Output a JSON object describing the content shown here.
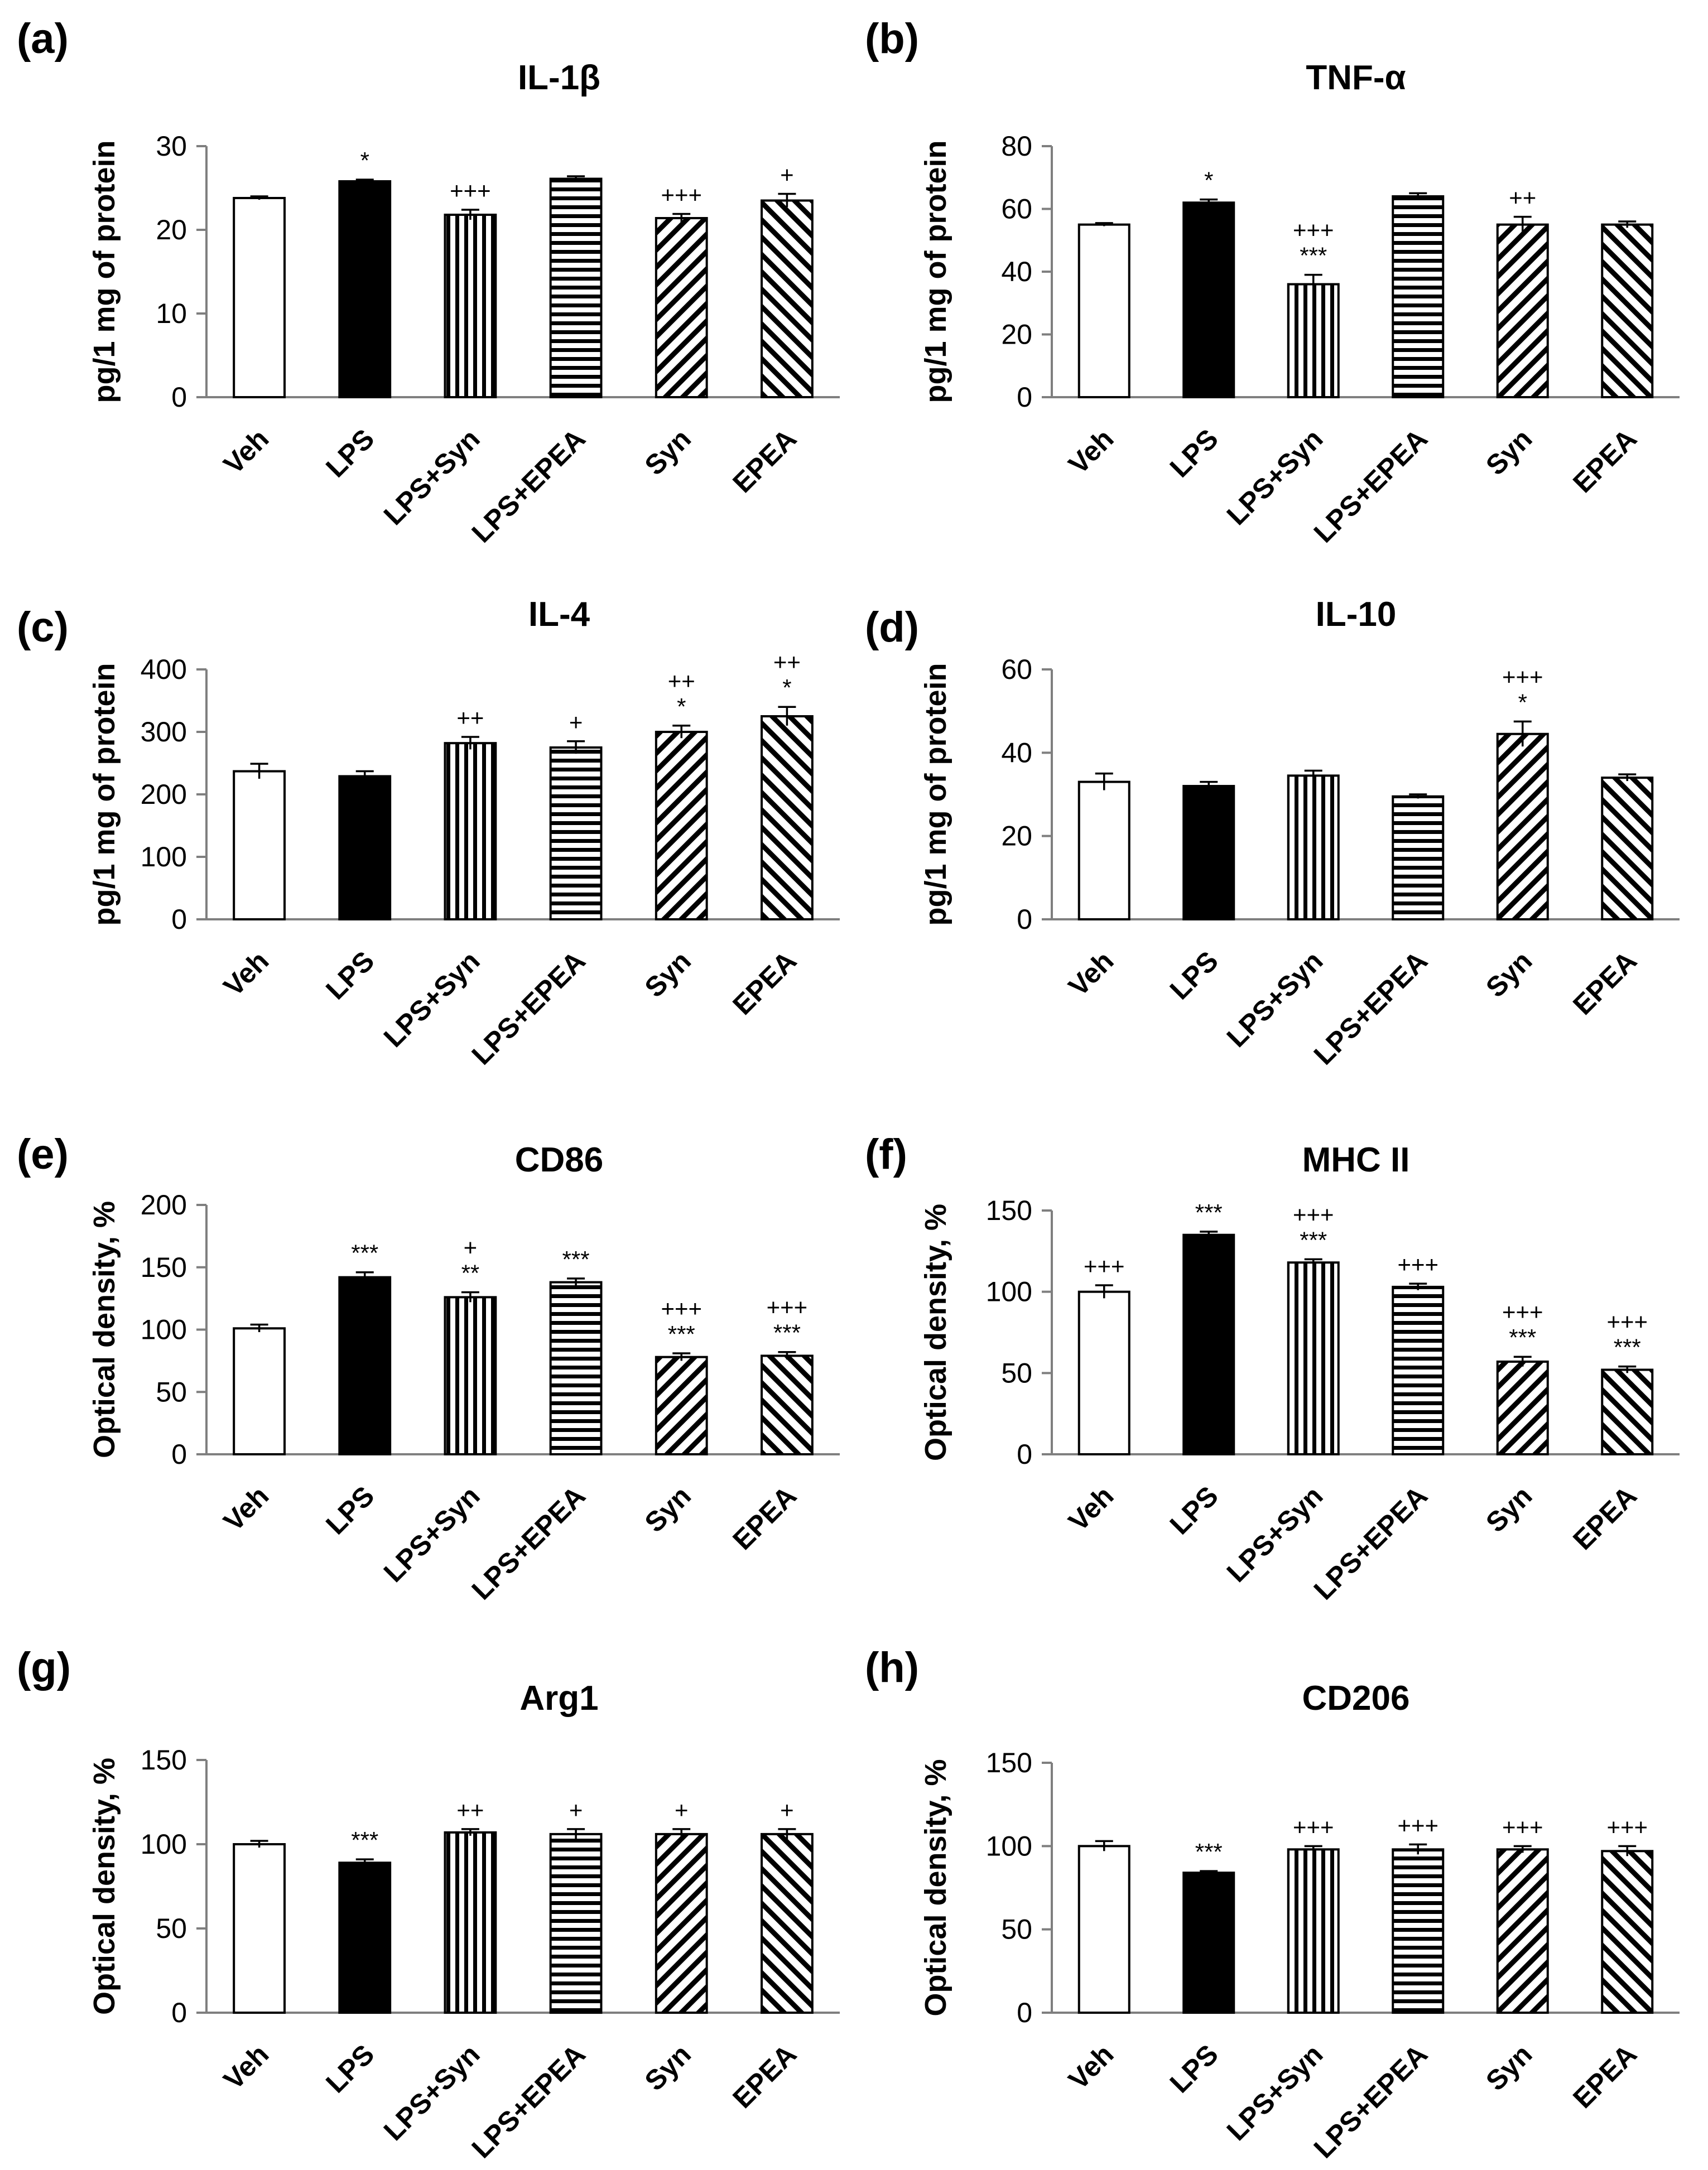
{
  "categories": [
    "Veh",
    "LPS",
    "LPS+Syn",
    "LPS+EPEA",
    "Syn",
    "EPEA"
  ],
  "colors": {
    "axis": "#7f7f7f",
    "bar_stroke": "#000000",
    "bar_fill": "#ffffff",
    "bar_solid": "#000000"
  },
  "chart_data": [
    {
      "panel": "(a)",
      "title": "IL-1β",
      "type": "bar",
      "ylabel": "pg/1 mg of protein",
      "ylim": [
        0,
        30
      ],
      "yticks": [
        0,
        10,
        20,
        30
      ],
      "categories": [
        "Veh",
        "LPS",
        "LPS+Syn",
        "LPS+EPEA",
        "Syn",
        "EPEA"
      ],
      "values": [
        23.8,
        25.8,
        21.8,
        26.1,
        21.4,
        23.5
      ],
      "errors": [
        0.2,
        0.2,
        0.6,
        0.3,
        0.5,
        0.8
      ],
      "significance": [
        [],
        [
          "*"
        ],
        [
          "+++"
        ],
        [],
        [
          "+++"
        ],
        [
          "+"
        ]
      ]
    },
    {
      "panel": "(b)",
      "title": "TNF-α",
      "type": "bar",
      "ylabel": "pg/1 mg of protein",
      "ylim": [
        0,
        80
      ],
      "yticks": [
        0,
        20,
        40,
        60,
        80
      ],
      "categories": [
        "Veh",
        "LPS",
        "LPS+Syn",
        "LPS+EPEA",
        "Syn",
        "EPEA"
      ],
      "values": [
        55,
        62,
        36,
        64,
        55,
        55
      ],
      "errors": [
        0.5,
        1,
        3,
        1,
        2.5,
        1
      ],
      "significance": [
        [],
        [
          "*"
        ],
        [
          "+++",
          "***"
        ],
        [],
        [
          "++"
        ],
        []
      ]
    },
    {
      "panel": "(c)",
      "title": "IL-4",
      "type": "bar",
      "ylabel": "pg/1 mg of protein",
      "ylim": [
        0,
        400
      ],
      "yticks": [
        0,
        100,
        200,
        300,
        400
      ],
      "categories": [
        "Veh",
        "LPS",
        "LPS+Syn",
        "LPS+EPEA",
        "Syn",
        "EPEA"
      ],
      "values": [
        237,
        229,
        282,
        275,
        300,
        325
      ],
      "errors": [
        12,
        8,
        10,
        10,
        10,
        15
      ],
      "significance": [
        [],
        [],
        [
          "++"
        ],
        [
          "+"
        ],
        [
          "++",
          "*"
        ],
        [
          "++",
          "*"
        ]
      ]
    },
    {
      "panel": "(d)",
      "title": "IL-10",
      "type": "bar",
      "ylabel": "pg/1 mg of protein",
      "ylim": [
        0,
        60
      ],
      "yticks": [
        0,
        20,
        40,
        60
      ],
      "categories": [
        "Veh",
        "LPS",
        "LPS+Syn",
        "LPS+EPEA",
        "Syn",
        "EPEA"
      ],
      "values": [
        33,
        32,
        34.5,
        29.5,
        44.5,
        34
      ],
      "errors": [
        2,
        1,
        1.2,
        0.5,
        3,
        0.8
      ],
      "significance": [
        [],
        [],
        [],
        [],
        [
          "+++",
          "*"
        ],
        []
      ]
    },
    {
      "panel": "(e)",
      "title": "CD86",
      "type": "bar",
      "ylabel": "Optical density, %",
      "ylim": [
        0,
        200
      ],
      "yticks": [
        0,
        50,
        100,
        150,
        200
      ],
      "categories": [
        "Veh",
        "LPS",
        "LPS+Syn",
        "LPS+EPEA",
        "Syn",
        "EPEA"
      ],
      "values": [
        101,
        142,
        126,
        138,
        78,
        79
      ],
      "errors": [
        3,
        4,
        4,
        3,
        3,
        3
      ],
      "significance": [
        [],
        [
          "***"
        ],
        [
          "+",
          "**"
        ],
        [
          "***"
        ],
        [
          "+++",
          "***"
        ],
        [
          "+++",
          "***"
        ]
      ]
    },
    {
      "panel": "(f)",
      "title": "MHC II",
      "type": "bar",
      "ylabel": "Optical density, %",
      "ylim": [
        0,
        150
      ],
      "yticks": [
        0,
        50,
        100,
        150
      ],
      "categories": [
        "Veh",
        "LPS",
        "LPS+Syn",
        "LPS+EPEA",
        "Syn",
        "EPEA"
      ],
      "values": [
        100,
        135,
        118,
        103,
        57,
        52
      ],
      "errors": [
        4,
        2,
        2,
        2,
        3,
        2
      ],
      "significance": [
        [
          "+++"
        ],
        [
          "***"
        ],
        [
          "+++",
          "***"
        ],
        [
          "+++"
        ],
        [
          "+++",
          "***"
        ],
        [
          "+++",
          "***"
        ]
      ]
    },
    {
      "panel": "(g)",
      "title": "Arg1",
      "type": "bar",
      "ylabel": "Optical density, %",
      "ylim": [
        0,
        150
      ],
      "yticks": [
        0,
        50,
        100,
        150
      ],
      "categories": [
        "Veh",
        "LPS",
        "LPS+Syn",
        "LPS+EPEA",
        "Syn",
        "EPEA"
      ],
      "values": [
        100,
        89,
        107,
        106,
        106,
        106
      ],
      "errors": [
        2,
        2,
        2,
        3,
        3,
        3
      ],
      "significance": [
        [],
        [
          "***"
        ],
        [
          "++"
        ],
        [
          "+"
        ],
        [
          "+"
        ],
        [
          "+"
        ]
      ]
    },
    {
      "panel": "(h)",
      "title": "CD206",
      "type": "bar",
      "ylabel": "Optical density, %",
      "ylim": [
        0,
        150
      ],
      "yticks": [
        0,
        50,
        100,
        150
      ],
      "categories": [
        "Veh",
        "LPS",
        "LPS+Syn",
        "LPS+EPEA",
        "Syn",
        "EPEA"
      ],
      "values": [
        100,
        84,
        98,
        98,
        98,
        97
      ],
      "errors": [
        3,
        1,
        2,
        3,
        2,
        3
      ],
      "significance": [
        [],
        [
          "***"
        ],
        [
          "+++"
        ],
        [
          "+++"
        ],
        [
          "+++"
        ],
        [
          "+++"
        ]
      ]
    }
  ]
}
